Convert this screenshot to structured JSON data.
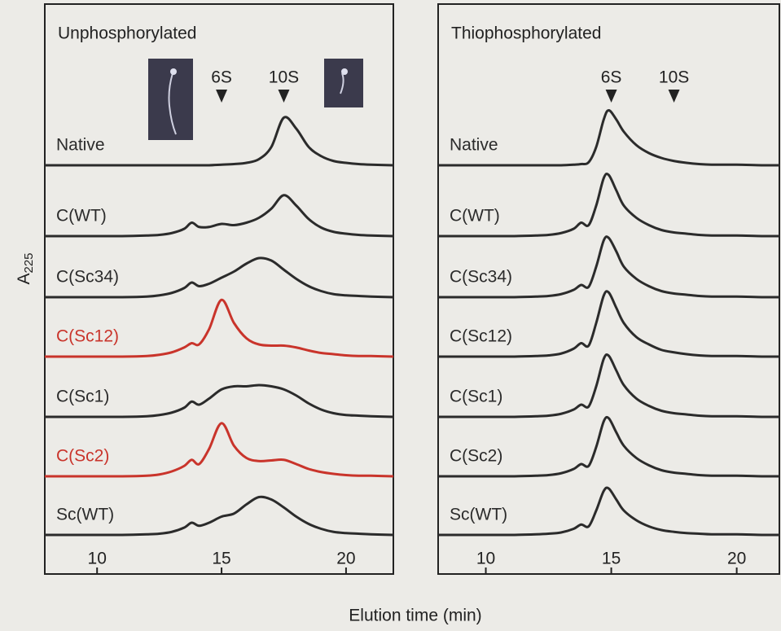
{
  "chart_data": [
    {
      "type": "line",
      "title": "Unphosphorylated",
      "xlabel": "Elution time  (min)",
      "ylabel": "A",
      "ylabel_subscript": "225",
      "xlim": [
        7.9,
        21.9
      ],
      "xticks": [
        10,
        15,
        20
      ],
      "markers": [
        {
          "label": "6S",
          "x": 15
        },
        {
          "label": "10S",
          "x": 17.5
        }
      ],
      "x": [
        7.9,
        10,
        11,
        12,
        12.5,
        13,
        13.5,
        13.8,
        14.1,
        14.5,
        15,
        15.5,
        16,
        16.5,
        17,
        17.5,
        18,
        18.5,
        19,
        19.5,
        20,
        20.5,
        21,
        21.9
      ],
      "series": [
        {
          "name": "Native",
          "color": "#2b2b2b",
          "values": [
            0,
            0,
            0,
            0,
            0,
            0,
            0,
            0,
            0,
            0,
            0.01,
            0.02,
            0.04,
            0.1,
            0.3,
            0.78,
            0.6,
            0.3,
            0.15,
            0.07,
            0.04,
            0.02,
            0.01,
            0
          ]
        },
        {
          "name": "C(WT)",
          "color": "#2b2b2b",
          "values": [
            0,
            0,
            0,
            0.01,
            0.02,
            0.05,
            0.12,
            0.22,
            0.15,
            0.15,
            0.2,
            0.18,
            0.22,
            0.3,
            0.45,
            0.67,
            0.5,
            0.28,
            0.14,
            0.07,
            0.04,
            0.02,
            0.01,
            0
          ]
        },
        {
          "name": "C(Sc34)",
          "color": "#2b2b2b",
          "values": [
            0,
            0,
            0,
            0.01,
            0.03,
            0.07,
            0.15,
            0.24,
            0.18,
            0.22,
            0.32,
            0.42,
            0.55,
            0.64,
            0.6,
            0.45,
            0.3,
            0.18,
            0.1,
            0.05,
            0.03,
            0.02,
            0.01,
            0
          ]
        },
        {
          "name": "C(Sc12)",
          "color": "#c9342b",
          "values": [
            0,
            0,
            0,
            0.01,
            0.03,
            0.07,
            0.15,
            0.22,
            0.2,
            0.45,
            0.93,
            0.55,
            0.3,
            0.2,
            0.18,
            0.18,
            0.15,
            0.1,
            0.06,
            0.04,
            0.02,
            0.01,
            0.01,
            0
          ]
        },
        {
          "name": "C(Sc1)",
          "color": "#2b2b2b",
          "values": [
            0,
            0,
            0,
            0.01,
            0.03,
            0.07,
            0.15,
            0.25,
            0.2,
            0.3,
            0.45,
            0.5,
            0.5,
            0.52,
            0.5,
            0.45,
            0.35,
            0.22,
            0.12,
            0.06,
            0.03,
            0.02,
            0.01,
            0
          ]
        },
        {
          "name": "C(Sc2)",
          "color": "#c9342b",
          "values": [
            0,
            0,
            0,
            0.01,
            0.03,
            0.08,
            0.17,
            0.27,
            0.2,
            0.45,
            0.87,
            0.5,
            0.3,
            0.25,
            0.26,
            0.27,
            0.2,
            0.12,
            0.07,
            0.04,
            0.02,
            0.01,
            0.01,
            0
          ]
        },
        {
          "name": "Sc(WT)",
          "color": "#2b2b2b",
          "values": [
            0,
            0,
            0,
            0.01,
            0.02,
            0.05,
            0.12,
            0.2,
            0.15,
            0.2,
            0.3,
            0.35,
            0.5,
            0.62,
            0.58,
            0.45,
            0.3,
            0.18,
            0.1,
            0.05,
            0.03,
            0.02,
            0.01,
            0
          ]
        }
      ]
    },
    {
      "type": "line",
      "title": "Thiophosphorylated",
      "xlim": [
        8.1,
        21.7
      ],
      "xticks": [
        10,
        15,
        20
      ],
      "markers": [
        {
          "label": "6S",
          "x": 15
        },
        {
          "label": "10S",
          "x": 17.5
        }
      ],
      "x": [
        8.1,
        10,
        11,
        12,
        12.5,
        13,
        13.5,
        13.8,
        14.1,
        14.4,
        14.7,
        14.9,
        15.2,
        15.5,
        16,
        16.5,
        17,
        17.5,
        18,
        18.5,
        19,
        20,
        21,
        21.7
      ],
      "series": [
        {
          "name": "Native",
          "color": "#2b2b2b",
          "values": [
            0,
            0,
            0,
            0,
            0,
            0,
            0.01,
            0.02,
            0.05,
            0.3,
            0.75,
            0.9,
            0.75,
            0.55,
            0.33,
            0.2,
            0.12,
            0.07,
            0.04,
            0.02,
            0.01,
            0.01,
            0,
            0
          ]
        },
        {
          "name": "C(WT)",
          "color": "#2b2b2b",
          "values": [
            0,
            0,
            0,
            0.01,
            0.02,
            0.05,
            0.12,
            0.22,
            0.18,
            0.5,
            0.95,
            1.0,
            0.75,
            0.5,
            0.3,
            0.18,
            0.1,
            0.06,
            0.04,
            0.02,
            0.01,
            0.01,
            0,
            0
          ]
        },
        {
          "name": "C(Sc34)",
          "color": "#2b2b2b",
          "values": [
            0,
            0,
            0,
            0.01,
            0.02,
            0.05,
            0.12,
            0.2,
            0.17,
            0.5,
            0.93,
            0.97,
            0.75,
            0.5,
            0.3,
            0.18,
            0.1,
            0.06,
            0.04,
            0.02,
            0.01,
            0.01,
            0,
            0
          ]
        },
        {
          "name": "C(Sc12)",
          "color": "#2b2b2b",
          "values": [
            0,
            0,
            0,
            0.01,
            0.02,
            0.05,
            0.13,
            0.22,
            0.18,
            0.55,
            1.0,
            1.05,
            0.8,
            0.55,
            0.32,
            0.2,
            0.11,
            0.07,
            0.04,
            0.02,
            0.01,
            0.01,
            0,
            0
          ]
        },
        {
          "name": "C(Sc1)",
          "color": "#2b2b2b",
          "values": [
            0,
            0,
            0,
            0.01,
            0.02,
            0.05,
            0.12,
            0.2,
            0.17,
            0.5,
            0.95,
            1.0,
            0.76,
            0.52,
            0.3,
            0.18,
            0.1,
            0.06,
            0.04,
            0.02,
            0.01,
            0.01,
            0,
            0
          ]
        },
        {
          "name": "C(Sc2)",
          "color": "#2b2b2b",
          "values": [
            0,
            0,
            0,
            0.01,
            0.02,
            0.05,
            0.12,
            0.2,
            0.17,
            0.48,
            0.9,
            0.95,
            0.72,
            0.5,
            0.3,
            0.18,
            0.1,
            0.06,
            0.04,
            0.02,
            0.01,
            0.01,
            0,
            0
          ]
        },
        {
          "name": "Sc(WT)",
          "color": "#2b2b2b",
          "values": [
            0,
            0,
            0,
            0.01,
            0.02,
            0.04,
            0.1,
            0.17,
            0.14,
            0.4,
            0.72,
            0.76,
            0.58,
            0.4,
            0.24,
            0.14,
            0.08,
            0.05,
            0.03,
            0.02,
            0.01,
            0.01,
            0,
            0
          ]
        }
      ]
    }
  ]
}
